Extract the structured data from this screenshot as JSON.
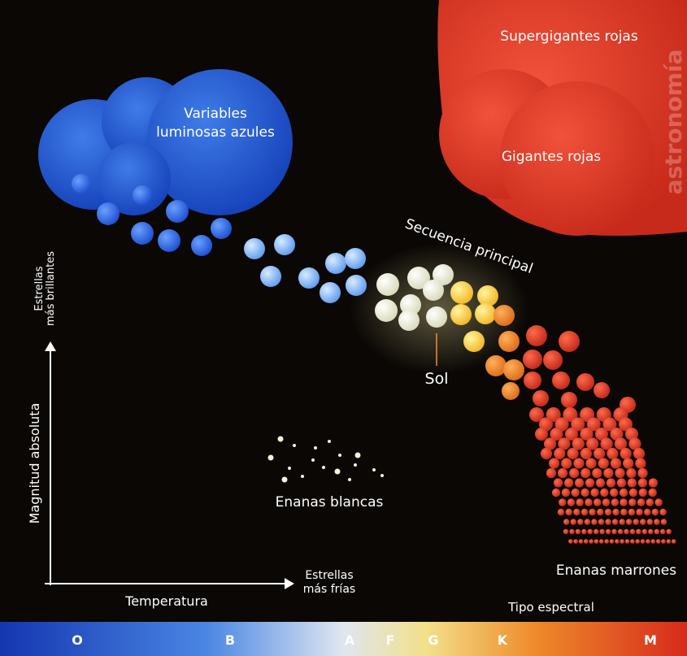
{
  "header": {
    "watermark": "astronomía"
  },
  "regions": [
    {
      "label_lines": [
        "Supergigantes rojas"
      ]
    },
    {
      "label_lines": [
        "Variables",
        "luminosas azules"
      ]
    },
    {
      "label_lines": [
        "Gigantes rojas"
      ]
    },
    {
      "label_lines": [
        "Secuencia principal"
      ]
    },
    {
      "label_lines": [
        "Sol"
      ]
    },
    {
      "label_lines": [
        "Enanas blancas"
      ]
    },
    {
      "label_lines": [
        "Enanas marrones"
      ]
    }
  ],
  "axes": {
    "y_label": "Magnitud absoluta",
    "y_end_lines": [
      "Estrellas",
      "más brillantes"
    ],
    "x_label": "Temperatura",
    "x_end_lines": [
      "Estrellas",
      "más frías"
    ]
  },
  "spectral": {
    "title": "Tipo espectral",
    "classes": [
      "O",
      "B",
      "A",
      "F",
      "G",
      "K",
      "M"
    ]
  }
}
